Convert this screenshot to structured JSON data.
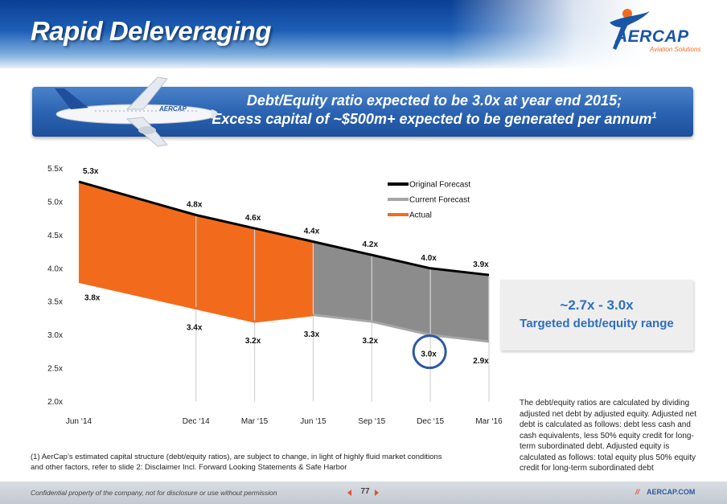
{
  "slide": {
    "title": "Rapid Deleveraging",
    "banner_line1": "Debt/Equity ratio expected to be 3.0x at year end 2015;",
    "banner_line2": "Excess capital of ~$500m+ expected to be generated per annum",
    "banner_superscript": "1",
    "range_main": "~2.7x - 3.0x",
    "range_sub": "Targeted debt/equity range",
    "note": "The debt/equity ratios are calculated by dividing adjusted net debt by adjusted equity. Adjusted net debt is calculated as follows: debt less cash and cash equivalents, less 50% equity credit for long-term subordinated debt. Adjusted equity is calculated as follows: total equity plus 50% equity credit for long-term subordinated debt",
    "footnote": "(1)     AerCap’s estimated capital structure (debt/equity ratios), are subject to change, in light of highly fluid market conditions and other factors, refer to slide 2: Disclaimer Incl. Forward Looking Statements & Safe Harbor"
  },
  "logo": {
    "word": "AERCAP",
    "sub": "Aviation Solutions"
  },
  "footer": {
    "confidential": "Confidential property of the company, not for disclosure or use without permission",
    "page": "77",
    "site_slash": "//",
    "site": "AERCAP.COM"
  },
  "colors": {
    "original": "#000000",
    "current": "#a6a6a6",
    "actual": "#f26b1d",
    "circle": "#2e57a6",
    "accent_blue": "#2e6fbd"
  },
  "chart_data": {
    "type": "area",
    "categories": [
      "Jun ‘14",
      "Dec ‘14",
      "Mar ‘15",
      "Jun ‘15",
      "Sep ‘15",
      "Dec ‘15",
      "Mar ‘16"
    ],
    "x": [
      "2014-06",
      "2014-12",
      "2015-03",
      "2015-06",
      "2015-09",
      "2015-12",
      "2016-03"
    ],
    "ylim": [
      2.0,
      5.5
    ],
    "yticks": [
      "2.0x",
      "2.5x",
      "3.0x",
      "3.5x",
      "4.0x",
      "4.5x",
      "5.0x",
      "5.5x"
    ],
    "ytick_values": [
      2.0,
      2.5,
      3.0,
      3.5,
      4.0,
      4.5,
      5.0,
      5.5
    ],
    "series": [
      {
        "name": "Original Forecast",
        "values": [
          5.3,
          4.8,
          4.6,
          4.4,
          4.2,
          4.0,
          3.9
        ],
        "labels": [
          "5.3x",
          "4.8x",
          "4.6x",
          "4.4x",
          "4.2x",
          "4.0x",
          "3.9x"
        ]
      },
      {
        "name": "Current Forecast",
        "values": [
          3.8,
          3.4,
          3.2,
          3.3,
          3.2,
          3.0,
          2.9
        ],
        "labels": [
          "3.8x",
          "3.4x",
          "3.2x",
          "3.3x",
          "3.2x",
          "3.0x",
          "2.9x"
        ]
      },
      {
        "name": "Actual",
        "values": [
          3.8,
          3.4,
          3.2,
          3.3,
          null,
          null,
          null
        ]
      }
    ],
    "actual_through": "Jun ‘15",
    "highlighted_point": "Dec ‘15",
    "legend": [
      "Original Forecast",
      "Current Forecast",
      "Actual"
    ],
    "legend_position": "top-right",
    "grid": false
  }
}
